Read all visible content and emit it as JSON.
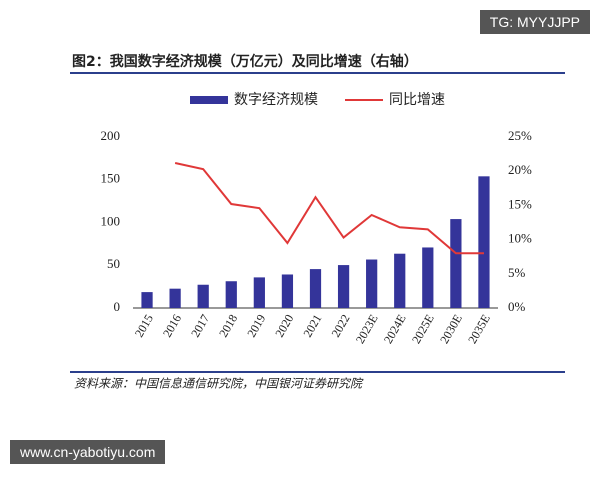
{
  "watermark_top": "TG: MYYJJPP",
  "watermark_bottom": "www.cn-yabotiyu.com",
  "chart_data": {
    "type": "bar",
    "title": "图2：我国数字经济规模（万亿元）及同比增速（右轴）",
    "source": "资料来源：中国信息通信研究院，中国银河证券研究院",
    "categories": [
      "2015",
      "2016",
      "2017",
      "2018",
      "2019",
      "2020",
      "2021",
      "2022",
      "2023E",
      "2024E",
      "2025E",
      "2030E",
      "2035E"
    ],
    "series": [
      {
        "name": "数字经济规模",
        "type": "bar",
        "color": "#34349a",
        "values": [
          18.6,
          22.6,
          27.2,
          31.3,
          35.8,
          39.2,
          45.5,
          50.2,
          56.7,
          63.5,
          70.8,
          104,
          154
        ]
      },
      {
        "name": "同比增速",
        "type": "line",
        "axis": "y2",
        "color": "#e03838",
        "values": [
          null,
          21.2,
          20.3,
          15.2,
          14.6,
          9.5,
          16.2,
          10.3,
          13.6,
          11.8,
          11.5,
          8.0,
          8.0
        ]
      }
    ],
    "ylim": [
      0,
      200
    ],
    "yticks": [
      0,
      50,
      100,
      150,
      200
    ],
    "y2lim": [
      0,
      25
    ],
    "y2ticks": [
      {
        "value": 0,
        "label": "0%"
      },
      {
        "value": 5,
        "label": "5%"
      },
      {
        "value": 10,
        "label": "10%"
      },
      {
        "value": 15,
        "label": "15%"
      },
      {
        "value": 20,
        "label": "20%"
      },
      {
        "value": 25,
        "label": "25%"
      }
    ],
    "grid": false
  }
}
